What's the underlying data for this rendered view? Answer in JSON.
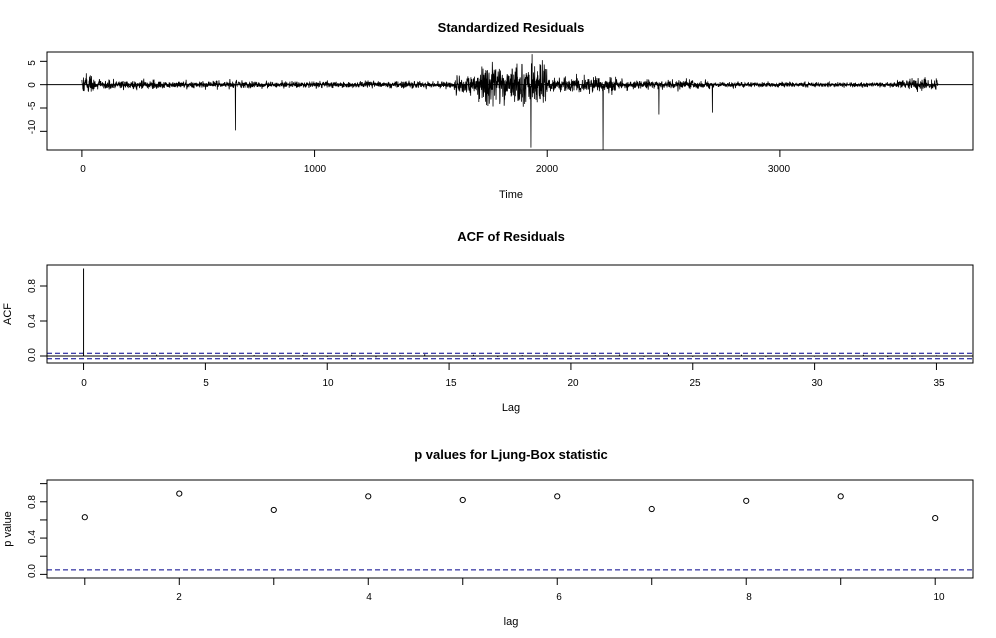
{
  "colors": {
    "foreground": "#000000",
    "reference_line": "#00008B",
    "background": "#ffffff"
  },
  "panels": {
    "residuals": {
      "title": "Standardized Residuals",
      "xlabel": "Time",
      "x_ticks": [
        "0",
        "1000",
        "2000",
        "3000"
      ],
      "y_ticks": [
        "-10",
        "-5",
        "0",
        "5"
      ]
    },
    "acf": {
      "title": "ACF of Residuals",
      "xlabel": "Lag",
      "ylabel": "ACF",
      "x_ticks": [
        "0",
        "5",
        "10",
        "15",
        "20",
        "25",
        "30",
        "35"
      ],
      "y_ticks": [
        "0.0",
        "0.4",
        "0.8"
      ]
    },
    "ljung": {
      "title": "p values for Ljung-Box statistic",
      "xlabel": "lag",
      "ylabel": "p value",
      "x_ticks": [
        "2",
        "4",
        "6",
        "8",
        "10"
      ],
      "y_ticks": [
        "0.0",
        "0.4",
        "0.8"
      ]
    }
  },
  "chart_data": [
    {
      "type": "line",
      "title": "Standardized Residuals",
      "xlabel": "Time",
      "ylabel": "",
      "xlim": [
        -150,
        3830
      ],
      "ylim": [
        -14,
        7
      ],
      "x_ticks": [
        0,
        1000,
        2000,
        3000
      ],
      "y_ticks": [
        -10,
        -5,
        0,
        5
      ],
      "reference_line_y": 0,
      "n_observations": 3680,
      "volatility_profile": [
        {
          "t_start": 0,
          "t_end": 60,
          "sd": 0.9
        },
        {
          "t_start": 60,
          "t_end": 400,
          "sd": 0.45
        },
        {
          "t_start": 400,
          "t_end": 1600,
          "sd": 0.35
        },
        {
          "t_start": 1600,
          "t_end": 1700,
          "sd": 1.0
        },
        {
          "t_start": 1700,
          "t_end": 2000,
          "sd": 2.0
        },
        {
          "t_start": 2000,
          "t_end": 2300,
          "sd": 0.8
        },
        {
          "t_start": 2300,
          "t_end": 2700,
          "sd": 0.45
        },
        {
          "t_start": 2700,
          "t_end": 3500,
          "sd": 0.25
        },
        {
          "t_start": 3500,
          "t_end": 3680,
          "sd": 0.6
        }
      ],
      "spikes": [
        {
          "x": 660,
          "y": -9.8
        },
        {
          "x": 1930,
          "y": -13.5
        },
        {
          "x": 2240,
          "y": -13.9
        },
        {
          "x": 2480,
          "y": -6.4
        },
        {
          "x": 2710,
          "y": -6.0
        }
      ]
    },
    {
      "type": "bar",
      "title": "ACF of Residuals",
      "xlabel": "Lag",
      "ylabel": "ACF",
      "xlim": [
        -1.5,
        36.5
      ],
      "ylim": [
        -0.08,
        1.04
      ],
      "x_ticks": [
        0,
        5,
        10,
        15,
        20,
        25,
        30,
        35
      ],
      "y_ticks": [
        0.0,
        0.4,
        0.8
      ],
      "lags": [
        0,
        1,
        2,
        3,
        4,
        5,
        6,
        7,
        8,
        9,
        10,
        11,
        12,
        13,
        14,
        15,
        16,
        17,
        18,
        19,
        20,
        21,
        22,
        23,
        24,
        25,
        26,
        27,
        28,
        29,
        30,
        31,
        32,
        33,
        34,
        35,
        36
      ],
      "values": [
        1.0,
        -0.01,
        0.0,
        0.015,
        -0.01,
        0.005,
        -0.012,
        0.01,
        -0.008,
        0.012,
        -0.01,
        0.015,
        -0.015,
        0.008,
        0.02,
        -0.005,
        0.014,
        -0.012,
        0.01,
        0.008,
        -0.012,
        0.01,
        0.018,
        -0.01,
        0.022,
        -0.01,
        0.012,
        0.014,
        -0.01,
        0.012,
        -0.008,
        0.01,
        0.014,
        -0.012,
        -0.01,
        0.008,
        -0.005
      ],
      "confidence_bounds": [
        -0.032,
        0.032
      ]
    },
    {
      "type": "scatter",
      "title": "p values for Ljung-Box statistic",
      "xlabel": "lag",
      "ylabel": "p value",
      "xlim": [
        0.6,
        10.4
      ],
      "ylim": [
        -0.04,
        1.04
      ],
      "x_ticks": [
        2,
        4,
        6,
        8,
        10
      ],
      "y_ticks": [
        0.0,
        0.4,
        0.8
      ],
      "x": [
        1,
        2,
        3,
        4,
        5,
        6,
        7,
        8,
        9,
        10
      ],
      "y": [
        0.63,
        0.89,
        0.71,
        0.86,
        0.82,
        0.86,
        0.72,
        0.81,
        0.86,
        0.62
      ],
      "reference_line_y": 0.05
    }
  ]
}
